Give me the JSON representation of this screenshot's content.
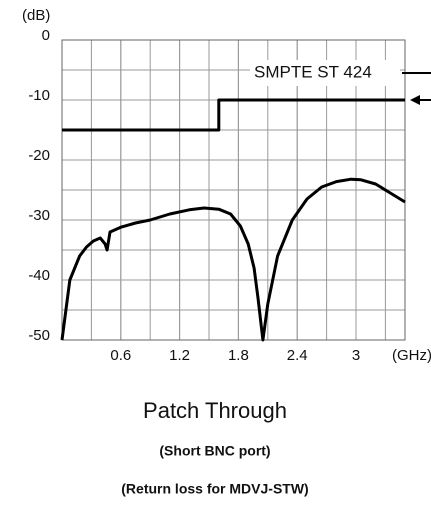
{
  "chart_data": {
    "type": "line",
    "y_label": "(dB)",
    "x_label": "(GHz)",
    "xlim": [
      0,
      3.5
    ],
    "ylim": [
      -50,
      0
    ],
    "xticks": [
      0.6,
      1.2,
      1.8,
      2.4,
      3.0
    ],
    "yticks": [
      0,
      -10,
      -20,
      -30,
      -40,
      -50
    ],
    "xgrid": [
      0.3,
      0.6,
      0.9,
      1.2,
      1.5,
      1.8,
      2.1,
      2.4,
      2.7,
      3.0,
      3.3
    ],
    "ygrid": [
      -5,
      -10,
      -15,
      -20,
      -25,
      -30,
      -35,
      -40,
      -45
    ],
    "grid": true,
    "series": [
      {
        "name": "SMPTE ST 424",
        "color": "#000000",
        "x": [
          0,
          1.6,
          1.6,
          3.5
        ],
        "values": [
          -15,
          -15,
          -10,
          -10
        ]
      },
      {
        "name": "Return loss",
        "color": "#000000",
        "x": [
          0,
          0.04,
          0.08,
          0.13,
          0.18,
          0.25,
          0.32,
          0.39,
          0.44,
          0.46,
          0.49,
          0.6,
          0.75,
          0.9,
          1.1,
          1.3,
          1.45,
          1.6,
          1.72,
          1.82,
          1.9,
          1.96,
          2.0,
          2.05,
          2.1,
          2.2,
          2.35,
          2.5,
          2.65,
          2.8,
          2.95,
          3.05,
          3.2,
          3.35,
          3.5
        ],
        "values": [
          -50,
          -45,
          -40,
          -38,
          -36,
          -34.5,
          -33.5,
          -33,
          -34,
          -35,
          -32,
          -31.2,
          -30.5,
          -30,
          -29,
          -28.3,
          -28,
          -28.2,
          -29,
          -31,
          -34,
          -38,
          -43,
          -50,
          -44,
          -36,
          -30,
          -26.5,
          -24.5,
          -23.6,
          -23.2,
          -23.3,
          -24,
          -25.5,
          -27
        ]
      }
    ],
    "footer": [
      "Patch Through",
      "(Short BNC port)",
      "(Return loss for MDVJ-STW)"
    ]
  }
}
